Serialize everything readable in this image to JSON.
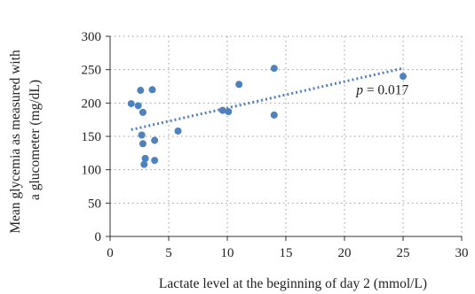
{
  "chart_data": {
    "type": "scatter",
    "xlabel": "Lactate level at the beginning of day 2 (mmol/L)",
    "ylabel_lines": [
      "Mean glycemia as measured with",
      "a glucometer (mg/dL)"
    ],
    "xlim": [
      0,
      30
    ],
    "ylim": [
      0,
      300
    ],
    "xticks": [
      0,
      5,
      10,
      15,
      20,
      25,
      30
    ],
    "yticks": [
      0,
      50,
      100,
      150,
      200,
      250,
      300
    ],
    "grid": true,
    "points": [
      {
        "x": 1.8,
        "y": 199
      },
      {
        "x": 2.4,
        "y": 196
      },
      {
        "x": 2.6,
        "y": 219
      },
      {
        "x": 2.8,
        "y": 186
      },
      {
        "x": 2.7,
        "y": 152
      },
      {
        "x": 2.8,
        "y": 139
      },
      {
        "x": 3.0,
        "y": 117
      },
      {
        "x": 2.9,
        "y": 108
      },
      {
        "x": 3.6,
        "y": 220
      },
      {
        "x": 3.8,
        "y": 144
      },
      {
        "x": 3.8,
        "y": 114
      },
      {
        "x": 5.8,
        "y": 158
      },
      {
        "x": 9.6,
        "y": 189
      },
      {
        "x": 10.1,
        "y": 187
      },
      {
        "x": 11.0,
        "y": 228
      },
      {
        "x": 14.0,
        "y": 252
      },
      {
        "x": 14.0,
        "y": 182
      },
      {
        "x": 25.0,
        "y": 240
      }
    ],
    "trendline": {
      "x": [
        1.8,
        25.0
      ],
      "y": [
        160,
        252
      ]
    },
    "annotation": {
      "prefix": "p",
      "text": " = 0.017",
      "x": 21.0,
      "y": 213
    },
    "colors": {
      "points": "#4f81bd",
      "trendline": "#4f81bd",
      "grid": "#9a9a9a"
    }
  }
}
